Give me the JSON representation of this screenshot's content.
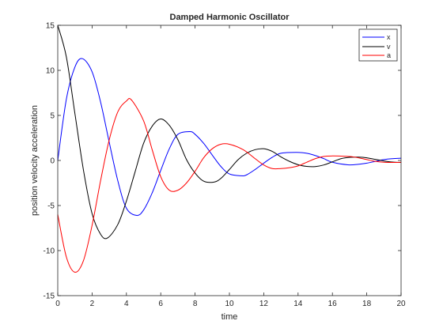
{
  "chart_data": {
    "type": "line",
    "title": "Damped Harmonic Oscillator",
    "xlabel": "time",
    "ylabel": "position velocity acceleration",
    "xlim": [
      0,
      20
    ],
    "ylim": [
      -15,
      15
    ],
    "xticks": [
      0,
      2,
      4,
      6,
      8,
      10,
      12,
      14,
      16,
      18,
      20
    ],
    "yticks": [
      -15,
      -10,
      -5,
      0,
      5,
      10,
      15
    ],
    "grid": false,
    "legend_position": "top-right",
    "series": [
      {
        "name": "x",
        "color": "#0000ff",
        "x": [
          0,
          0.5,
          1,
          1.44,
          2,
          2.5,
          3,
          3.5,
          4,
          4.6,
          5,
          5.5,
          6,
          6.5,
          7,
          7.7,
          8,
          8.5,
          9,
          9.5,
          10,
          10.7,
          11,
          11.5,
          12,
          12.5,
          13,
          13.9,
          14.5,
          15,
          15.5,
          16,
          16.9,
          17.5,
          18,
          18.5,
          19,
          19.5,
          20
        ],
        "y": [
          0,
          6.78,
          10.37,
          11.3,
          9.84,
          6.45,
          2.01,
          -2.26,
          -5.3,
          -6.1,
          -5.5,
          -3.6,
          -1.1,
          1.3,
          2.9,
          3.2,
          2.9,
          1.9,
          0.6,
          -0.66,
          -1.5,
          -1.7,
          -1.6,
          -1.0,
          -0.3,
          0.36,
          0.8,
          0.9,
          0.8,
          0.55,
          0.2,
          -0.2,
          -0.48,
          -0.43,
          -0.3,
          -0.1,
          0.1,
          0.2,
          0.25
        ]
      },
      {
        "name": "v",
        "color": "#000000",
        "x": [
          0,
          0.5,
          1,
          1.5,
          2,
          2.5,
          2.9,
          3.5,
          4,
          4.5,
          5,
          5.5,
          6,
          6.5,
          7,
          7.5,
          8,
          8.5,
          9.1,
          9.5,
          10,
          10.5,
          11,
          11.5,
          12,
          12.5,
          13,
          13.5,
          14,
          14.5,
          15,
          15.5,
          16,
          16.5,
          17,
          17.5,
          18,
          18.5,
          19,
          19.5,
          20
        ],
        "y": [
          15,
          11.5,
          5.2,
          -1.1,
          -5.9,
          -8.2,
          -8.6,
          -7.1,
          -4.5,
          -1.3,
          1.9,
          3.8,
          4.6,
          3.9,
          2.3,
          0.1,
          -1.4,
          -2.3,
          -2.4,
          -2.0,
          -1.0,
          0.08,
          0.8,
          1.2,
          1.3,
          1.0,
          0.4,
          -0.1,
          -0.47,
          -0.66,
          -0.68,
          -0.5,
          -0.15,
          0.2,
          0.35,
          0.37,
          0.3,
          0.12,
          -0.05,
          -0.18,
          -0.22
        ]
      },
      {
        "name": "a",
        "color": "#ff0000",
        "x": [
          0,
          0.5,
          1,
          1.5,
          2,
          2.5,
          3,
          3.5,
          4,
          4.3,
          5,
          5.5,
          6,
          6.5,
          7,
          7.5,
          8,
          8.5,
          9,
          9.5,
          10,
          10.8,
          11.5,
          12,
          12.5,
          13,
          13.5,
          14,
          14.5,
          15,
          15.5,
          16,
          16.5,
          17.2,
          18,
          18.5,
          19,
          19.5,
          20
        ],
        "y": [
          -6,
          -10.7,
          -12.4,
          -11.1,
          -7.2,
          -2.2,
          2.3,
          5.4,
          6.6,
          6.7,
          4.4,
          1.2,
          -1.8,
          -3.3,
          -3.3,
          -2.5,
          -1.2,
          0.3,
          1.3,
          1.8,
          1.8,
          1.2,
          0.2,
          -0.5,
          -0.9,
          -0.9,
          -0.8,
          -0.6,
          -0.2,
          0.2,
          0.45,
          0.5,
          0.48,
          0.4,
          0.1,
          -0.1,
          -0.2,
          -0.22,
          -0.2
        ]
      }
    ]
  }
}
